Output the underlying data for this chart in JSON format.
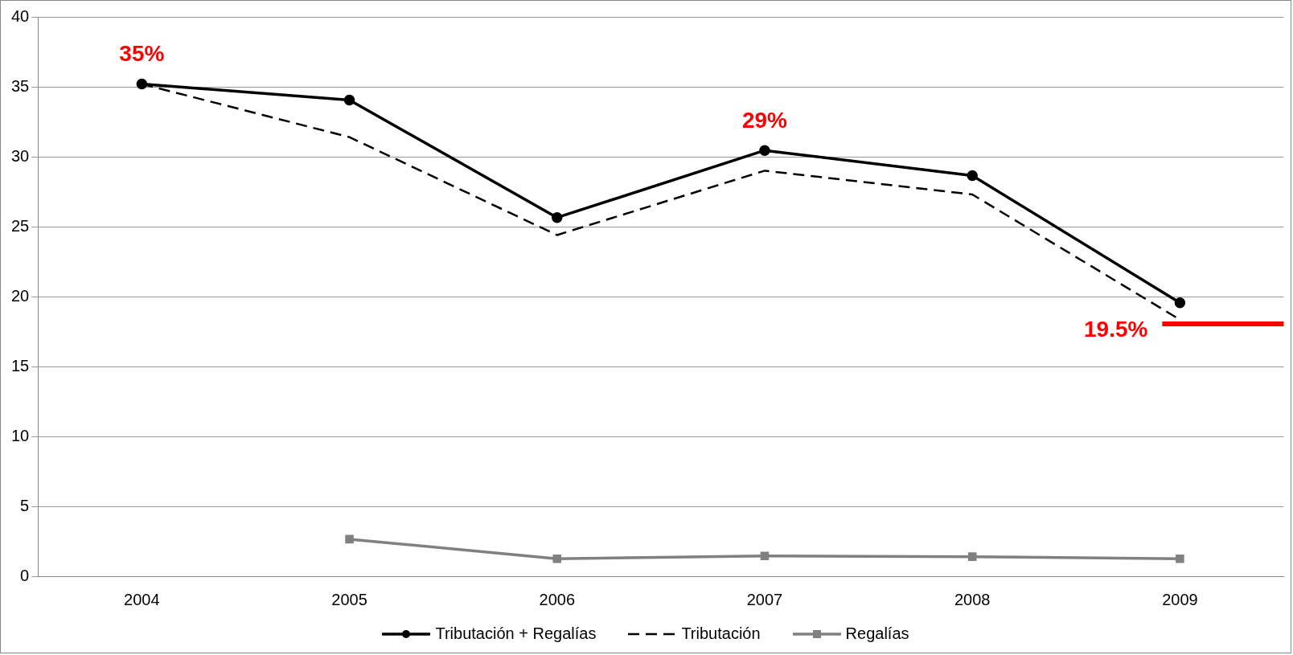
{
  "chart_data": {
    "type": "line",
    "categories": [
      "2004",
      "2005",
      "2006",
      "2007",
      "2008",
      "2009"
    ],
    "series": [
      {
        "name": "Tributación + Regalías",
        "color": "#000000",
        "marker": "circle",
        "line_style": "solid",
        "values": [
          35.2,
          34.05,
          25.65,
          30.45,
          28.65,
          19.55
        ]
      },
      {
        "name": "Tributación",
        "color": "#000000",
        "marker": "none",
        "line_style": "dashed",
        "values": [
          35.2,
          31.4,
          24.4,
          29.0,
          27.3,
          18.35
        ]
      },
      {
        "name": "Regalías",
        "color": "#808080",
        "marker": "square",
        "line_style": "solid",
        "values": [
          null,
          2.65,
          1.25,
          1.45,
          1.4,
          1.25
        ]
      }
    ],
    "ylim": [
      0,
      40
    ],
    "yticks": [
      0,
      5,
      10,
      15,
      20,
      25,
      30,
      35,
      40
    ],
    "grid": "y",
    "legend": "bottom",
    "annotations": [
      {
        "text": "35%",
        "x": "2004",
        "y": 35.2
      },
      {
        "text": "29%",
        "x": "2007",
        "y": 30.45
      },
      {
        "text": "19.5%",
        "x": "2009",
        "y": 19.55
      }
    ],
    "ref_lines": [
      {
        "axis": "y",
        "value": 18.05,
        "color": "#ff0000"
      }
    ]
  }
}
